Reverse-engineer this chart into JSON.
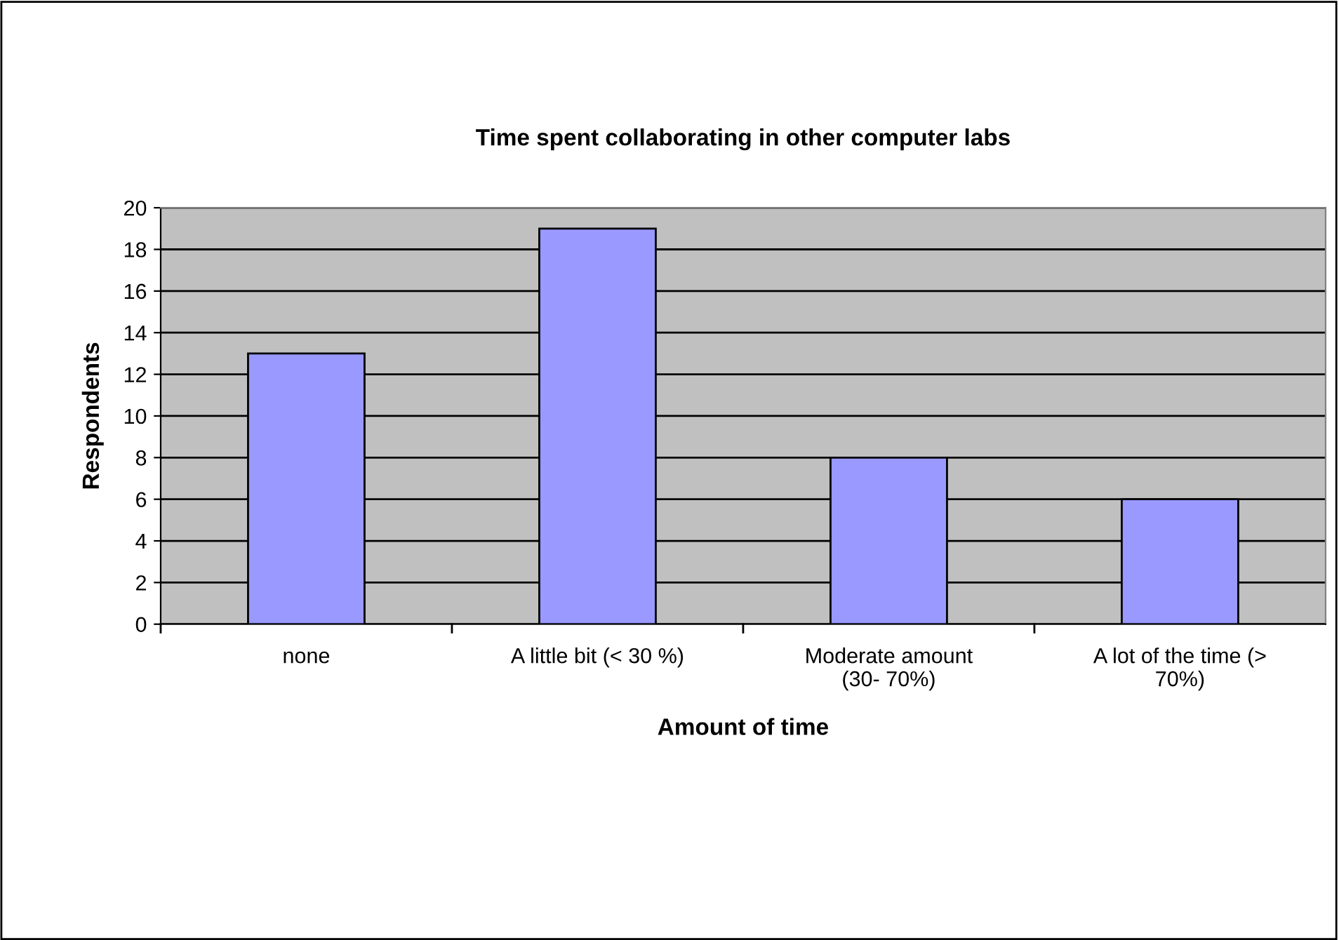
{
  "chart_data": {
    "type": "bar",
    "title": "Time spent collaborating in other computer labs",
    "xlabel": "Amount of time",
    "ylabel": "Respondents",
    "categories": [
      "none",
      "A little bit (< 30 %)",
      "Moderate amount\n(30- 70%)",
      "A lot of the time (>\n70%)"
    ],
    "values": [
      13,
      19,
      8,
      6
    ],
    "color": "#9999ff",
    "ylim": [
      0,
      20
    ],
    "yticks": [
      0,
      2,
      4,
      6,
      8,
      10,
      12,
      14,
      16,
      18,
      20
    ],
    "grid": "y",
    "legend": false
  }
}
